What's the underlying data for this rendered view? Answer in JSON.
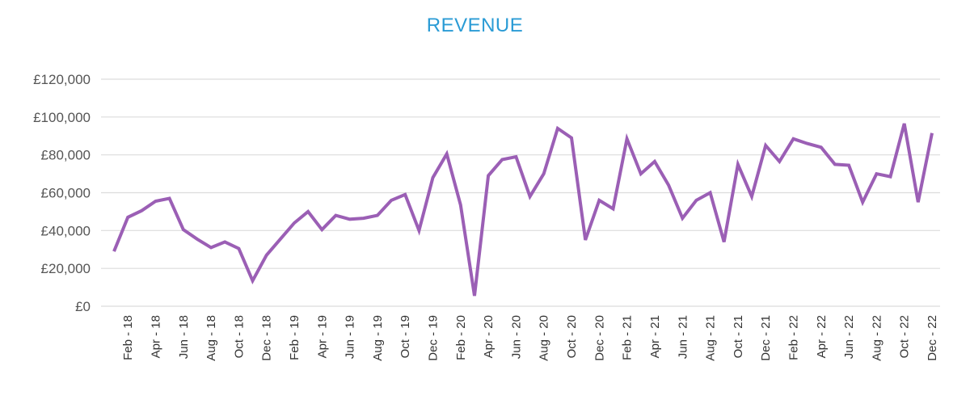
{
  "chart_data": {
    "type": "line",
    "title": "REVENUE",
    "xlabel": "",
    "ylabel": "",
    "ylim": [
      0,
      120000
    ],
    "yticks": [
      0,
      20000,
      40000,
      60000,
      80000,
      100000,
      120000
    ],
    "ytick_labels": [
      "£0",
      "£20,000",
      "£40,000",
      "£60,000",
      "£80,000",
      "£100,000",
      "£120,000"
    ],
    "grid": true,
    "line_color": "#9b5fb5",
    "x": [
      "Jan - 18",
      "Feb - 18",
      "Mar - 18",
      "Apr - 18",
      "May - 18",
      "Jun - 18",
      "Jul - 18",
      "Aug - 18",
      "Sep - 18",
      "Oct - 18",
      "Nov - 18",
      "Dec - 18",
      "Jan - 19",
      "Feb - 19",
      "Mar - 19",
      "Apr - 19",
      "May - 19",
      "Jun - 19",
      "Jul - 19",
      "Aug - 19",
      "Sep - 19",
      "Oct - 19",
      "Nov - 19",
      "Dec - 19",
      "Jan - 20",
      "Feb - 20",
      "Mar - 20",
      "Apr - 20",
      "May - 20",
      "Jun - 20",
      "Jul - 20",
      "Aug - 20",
      "Sep - 20",
      "Oct - 20",
      "Nov - 20",
      "Dec - 20",
      "Jan - 21",
      "Feb - 21",
      "Mar - 21",
      "Apr - 21",
      "May - 21",
      "Jun - 21",
      "Jul - 21",
      "Aug - 21",
      "Sep - 21",
      "Oct - 21",
      "Nov - 21",
      "Dec - 21",
      "Jan - 22",
      "Feb - 22",
      "Mar - 22",
      "Apr - 22",
      "May - 22",
      "Jun - 22",
      "Jul - 22",
      "Aug - 22",
      "Sep - 22",
      "Oct - 22",
      "Nov - 22",
      "Dec - 22"
    ],
    "x_tick_labels": [
      "",
      "Feb - 18",
      "",
      "Apr - 18",
      "",
      "Jun - 18",
      "",
      "Aug - 18",
      "",
      "Oct - 18",
      "",
      "Dec - 18",
      "",
      "Feb - 19",
      "",
      "Apr - 19",
      "",
      "Jun - 19",
      "",
      "Aug - 19",
      "",
      "Oct - 19",
      "",
      "Dec - 19",
      "",
      "Feb - 20",
      "",
      "Apr - 20",
      "",
      "Jun - 20",
      "",
      "Aug - 20",
      "",
      "Oct - 20",
      "",
      "Dec - 20",
      "",
      "Feb - 21",
      "",
      "Apr - 21",
      "",
      "Jun - 21",
      "",
      "Aug - 21",
      "",
      "Oct - 21",
      "",
      "Dec - 21",
      "",
      "Feb - 22",
      "",
      "Apr - 22",
      "",
      "Jun - 22",
      "",
      "Aug - 22",
      "",
      "Oct - 22",
      "",
      "Dec - 22"
    ],
    "series": [
      {
        "values": [
          29000,
          47000,
          50500,
          55500,
          57000,
          40500,
          35500,
          31000,
          34000,
          30500,
          13500,
          27000,
          35500,
          44000,
          50000,
          40500,
          48000,
          46000,
          46500,
          48000,
          56000,
          59000,
          40000,
          68000,
          80500,
          53500,
          5500,
          69000,
          77500,
          79000,
          58000,
          70000,
          94000,
          89000,
          35000,
          56000,
          51500,
          88500,
          70000,
          76500,
          64000,
          46500,
          56000,
          60000,
          34000,
          75000,
          58000,
          85000,
          76500,
          88500,
          86000,
          84000,
          75000,
          74500,
          55000,
          70000,
          68500,
          96500,
          55000,
          91500
        ]
      }
    ]
  }
}
